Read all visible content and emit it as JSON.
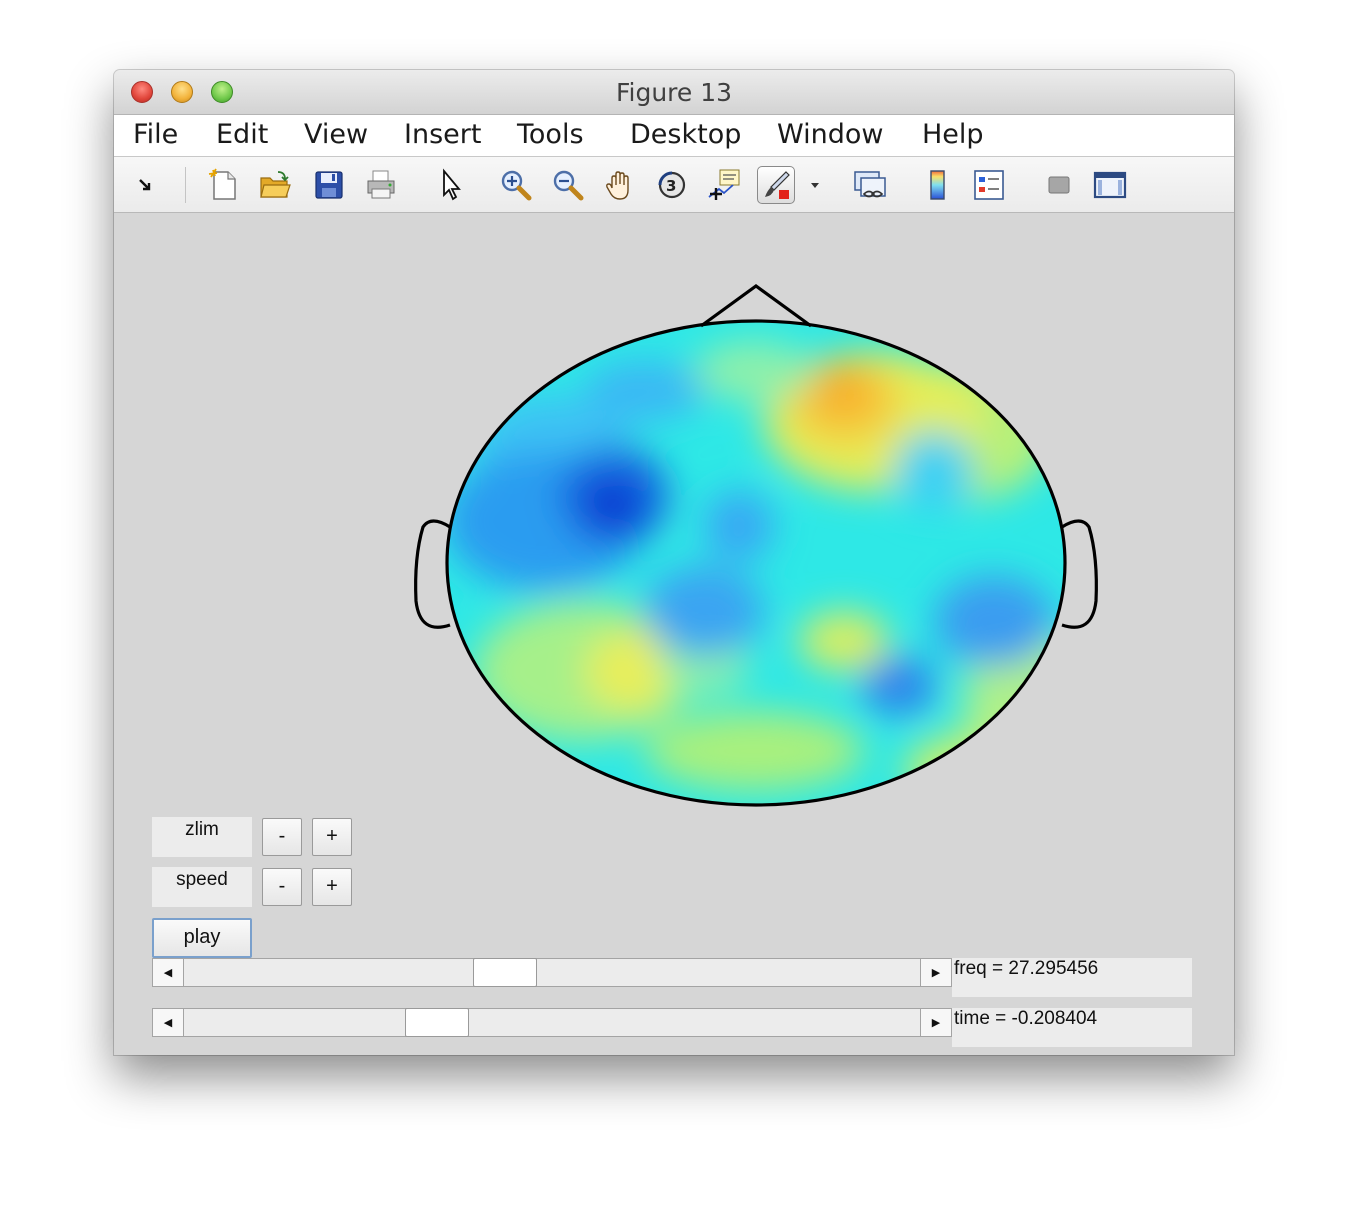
{
  "window": {
    "title": "Figure 13"
  },
  "menu": {
    "items": [
      {
        "label": "File"
      },
      {
        "label": "Edit"
      },
      {
        "label": "View"
      },
      {
        "label": "Insert"
      },
      {
        "label": "Tools"
      },
      {
        "label": "Desktop"
      },
      {
        "label": "Window"
      },
      {
        "label": "Help"
      }
    ]
  },
  "toolbar": {
    "icons": [
      "dock-arrow-icon",
      "new-figure-icon",
      "open-file-icon",
      "save-icon",
      "print-icon",
      "edit-plot-pointer-icon",
      "zoom-in-icon",
      "zoom-out-icon",
      "pan-hand-icon",
      "rotate-3d-icon",
      "data-cursor-icon",
      "brush-icon",
      "brush-dropdown-icon",
      "link-plot-icon",
      "colorbar-icon",
      "legend-icon",
      "hide-plot-tools-icon",
      "show-plot-tools-icon"
    ],
    "active": "brush-icon"
  },
  "topoplot": {
    "colormap": "jet",
    "outline_color": "#000000"
  },
  "controls": {
    "zlim_label": "zlim",
    "speed_label": "speed",
    "minus": "-",
    "plus": "+",
    "play_label": "play",
    "freq_text": "freq = 27.295456",
    "time_text": "time = -0.208404",
    "freq_slider_fraction": 0.43,
    "time_slider_fraction": 0.33
  }
}
